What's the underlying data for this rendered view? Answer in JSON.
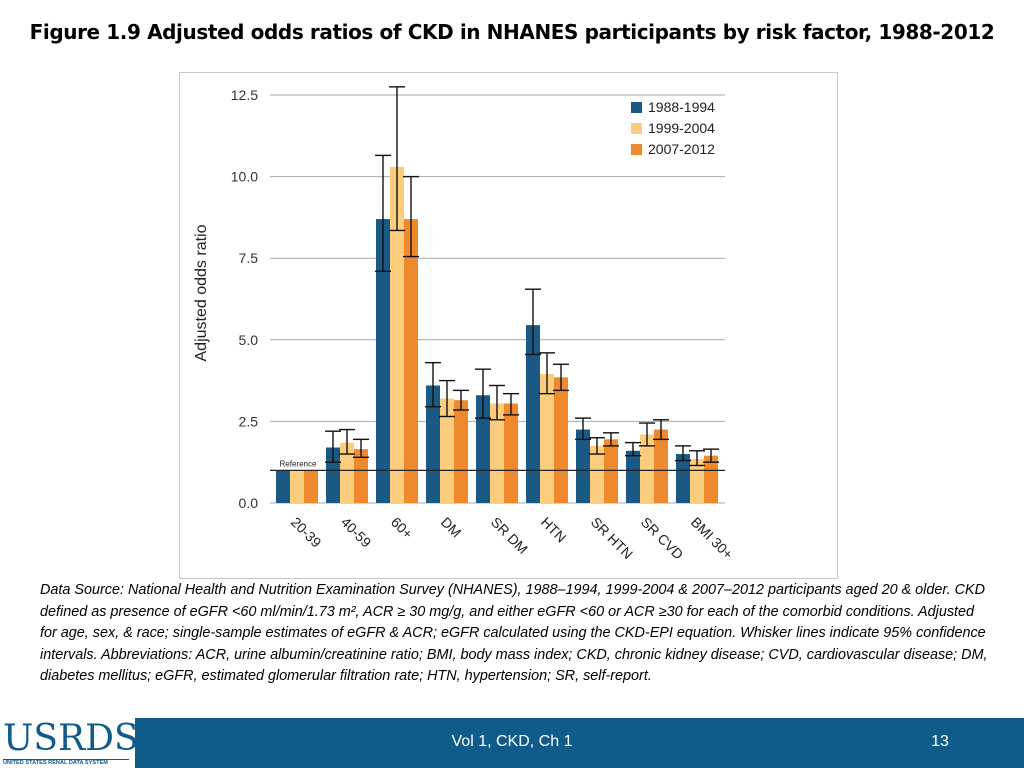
{
  "slide": {
    "title": "Figure 1.9 Adjusted odds ratios of CKD in NHANES participants by risk factor, 1988-2012"
  },
  "colors": {
    "series_1": "#1b5985",
    "series_2": "#fbcd7d",
    "series_3": "#ee8a2d",
    "grid": "#aaaaaa",
    "footer": "#0f5b8a"
  },
  "chart_data": {
    "type": "bar",
    "title": "",
    "xlabel": "",
    "ylabel": "Adjusted odds ratio",
    "ylim": [
      0,
      12.5
    ],
    "yticks": [
      0,
      2.5,
      5,
      7.5,
      10,
      12.5
    ],
    "ytick_labels": [
      "0.0",
      "2.5",
      "5.0",
      "7.5",
      "10.0",
      "12.5"
    ],
    "categories": [
      "20-39",
      "40-59",
      "60+",
      "DM",
      "SR DM",
      "HTN",
      "SR HTN",
      "SR CVD",
      "BMI 30+"
    ],
    "reference_line": {
      "value": 1.0,
      "label": "Reference"
    },
    "legend_position": "top-right",
    "series": [
      {
        "name": "1988-1994",
        "values": [
          1.0,
          1.7,
          8.7,
          3.6,
          3.3,
          5.45,
          2.25,
          1.6,
          1.5
        ],
        "ci_low": [
          1.0,
          1.25,
          7.1,
          2.95,
          2.6,
          4.55,
          1.95,
          1.45,
          1.3
        ],
        "ci_high": [
          1.0,
          2.2,
          10.65,
          4.3,
          4.1,
          6.55,
          2.6,
          1.85,
          1.75
        ]
      },
      {
        "name": "1999-2004",
        "values": [
          1.0,
          1.85,
          10.3,
          3.2,
          3.05,
          3.95,
          1.75,
          2.1,
          1.35
        ],
        "ci_low": [
          1.0,
          1.5,
          8.35,
          2.65,
          2.55,
          3.35,
          1.5,
          1.75,
          1.15
        ],
        "ci_high": [
          1.0,
          2.25,
          12.75,
          3.75,
          3.6,
          4.6,
          2.0,
          2.45,
          1.6
        ]
      },
      {
        "name": "2007-2012",
        "values": [
          1.0,
          1.65,
          8.7,
          3.15,
          3.05,
          3.85,
          1.95,
          2.25,
          1.45
        ],
        "ci_low": [
          1.0,
          1.4,
          7.55,
          2.85,
          2.7,
          3.45,
          1.75,
          1.95,
          1.25
        ],
        "ci_high": [
          1.0,
          1.95,
          10.0,
          3.45,
          3.35,
          4.25,
          2.15,
          2.55,
          1.65
        ]
      }
    ]
  },
  "footnote": {
    "text": "Data Source: National Health and Nutrition Examination Survey (NHANES), 1988–1994, 1999-2004 & 2007–2012 participants aged 20 & older. CKD defined as presence of eGFR <60 ml/min/1.73 m², ACR ≥ 30 mg/g, and either eGFR <60 or ACR ≥30 for each of the comorbid conditions. Adjusted for age, sex, & race; single-sample estimates of eGFR & ACR; eGFR calculated using the CKD-EPI equation. Whisker lines indicate 95% confidence intervals. Abbreviations: ACR, urine albumin/creatinine ratio; BMI, body mass index; CKD, chronic kidney disease; CVD, cardiovascular disease; DM, diabetes mellitus; eGFR, estimated glomerular filtration rate; HTN, hypertension; SR, self-report."
  },
  "footer": {
    "logo_text": "USRDS",
    "logo_subtitle": "UNITED STATES RENAL DATA SYSTEM",
    "center_text": "Vol 1, CKD, Ch 1",
    "page_number": "13"
  }
}
